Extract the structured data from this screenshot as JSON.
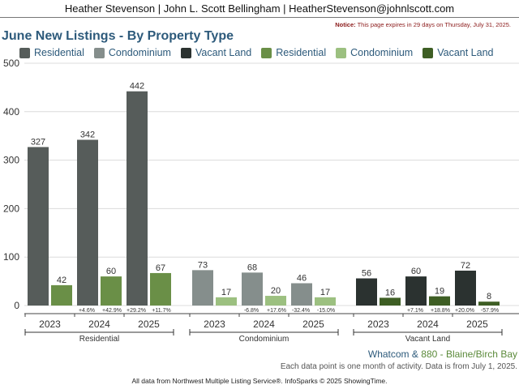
{
  "header": {
    "agent_line": "Heather Stevenson | John L. Scott Bellingham | HeatherStevenson@johnlscott.com"
  },
  "notice": {
    "label": "Notice:",
    "text": "This page expires in 29 days on Thursday, July 31, 2025."
  },
  "colors": {
    "residential_prev": "#565c5a",
    "condo_prev": "#858e8c",
    "vacant_prev": "#2b3230",
    "residential_curr": "#6a8f47",
    "condo_curr": "#9cc080",
    "vacant_curr": "#3e5e24",
    "title_blue": "#2d5a7b"
  },
  "legend": [
    {
      "label": "Residential",
      "color": "#565c5a"
    },
    {
      "label": "Condominium",
      "color": "#858e8c"
    },
    {
      "label": "Vacant Land",
      "color": "#2b3230"
    },
    {
      "label": "Residential",
      "color": "#6a8f47"
    },
    {
      "label": "Condominium",
      "color": "#9cc080"
    },
    {
      "label": "Vacant Land",
      "color": "#3e5e24"
    }
  ],
  "chart_data": {
    "type": "bar",
    "title": "June New Listings - By Property Type",
    "ylim": [
      0,
      500
    ],
    "yticks": [
      0,
      100,
      200,
      300,
      400,
      500
    ],
    "grid": true,
    "legend_position": "top",
    "groups": [
      {
        "name": "Residential",
        "years": [
          "2023",
          "2024",
          "2025"
        ],
        "prev_values": [
          327,
          342,
          442
        ],
        "curr_values": [
          42,
          60,
          67
        ],
        "prev_color": "#565c5a",
        "curr_color": "#6a8f47",
        "changes": [
          [
            "",
            ""
          ],
          [
            "+4.6%",
            "+42.9%"
          ],
          [
            "+29.2%",
            "+11.7%"
          ]
        ]
      },
      {
        "name": "Condominium",
        "years": [
          "2023",
          "2024",
          "2025"
        ],
        "prev_values": [
          73,
          68,
          46
        ],
        "curr_values": [
          17,
          20,
          17
        ],
        "prev_color": "#858e8c",
        "curr_color": "#9cc080",
        "changes": [
          [
            "",
            ""
          ],
          [
            "-6.8%",
            "+17.6%"
          ],
          [
            "-32.4%",
            "-15.0%"
          ]
        ]
      },
      {
        "name": "Vacant Land",
        "years": [
          "2023",
          "2024",
          "2025"
        ],
        "prev_values": [
          56,
          60,
          72
        ],
        "curr_values": [
          16,
          19,
          8
        ],
        "prev_color": "#2b3230",
        "curr_color": "#3e5e24",
        "changes": [
          [
            "",
            ""
          ],
          [
            "+7.1%",
            "+18.8%"
          ],
          [
            "+20.0%",
            "-57.9%"
          ]
        ]
      }
    ]
  },
  "footer": {
    "area_prefix": "Whatcom",
    "area_amp": "&",
    "area_name": "880 - Blaine/Birch Bay",
    "note": "Each data point is one month of activity. Data is from July 1, 2025.",
    "copyright": "All data from Northwest Multiple Listing Service®. InfoSparks © 2025 ShowingTime."
  }
}
